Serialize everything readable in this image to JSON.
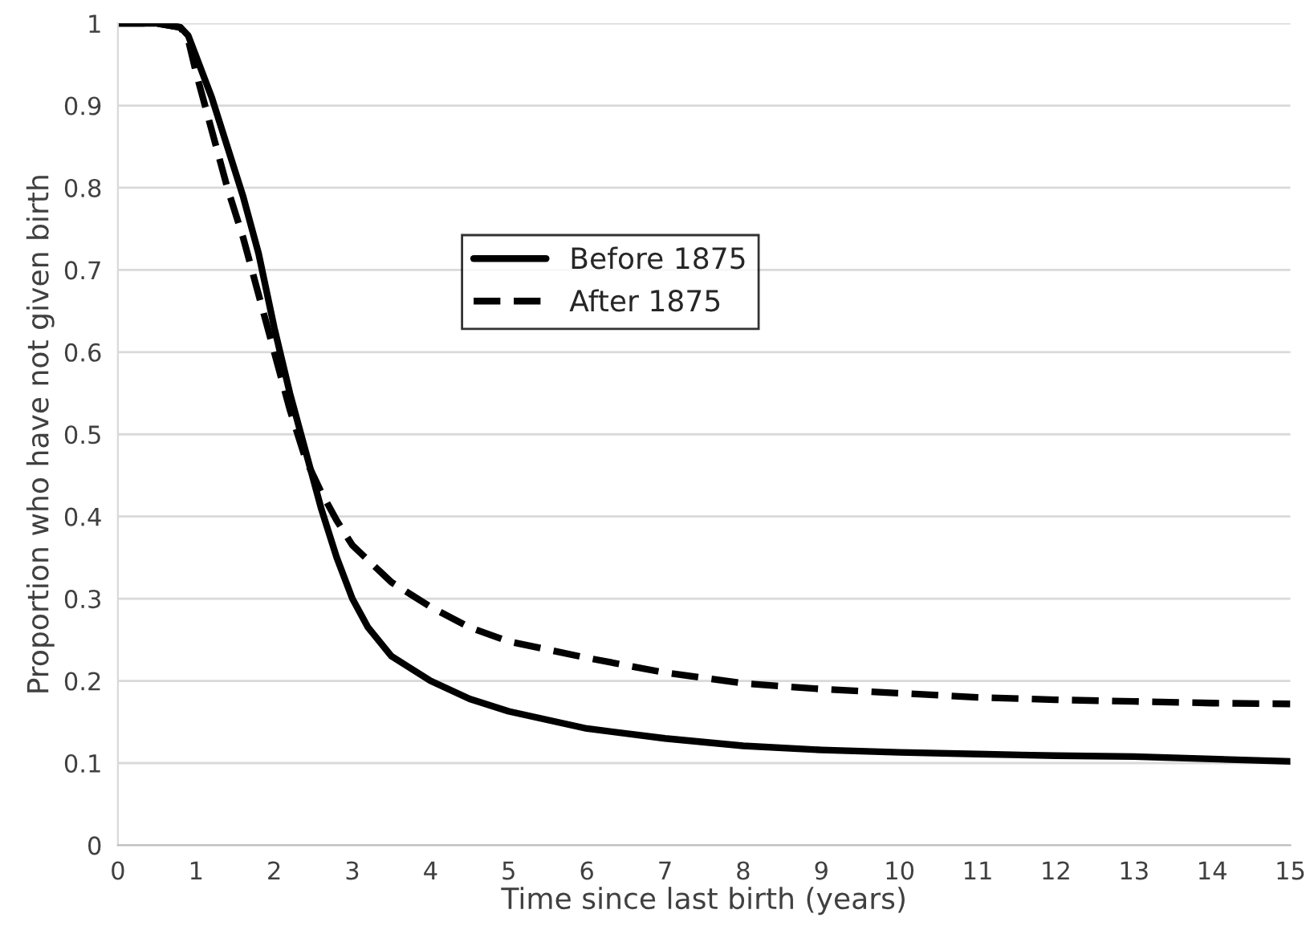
{
  "chart_data": {
    "type": "line",
    "xlabel": "Time since last birth (years)",
    "ylabel": "Proportion who have not given birth",
    "xlim": [
      0,
      15
    ],
    "xticks": [
      0,
      1,
      2,
      3,
      4,
      5,
      6,
      7,
      8,
      9,
      10,
      11,
      12,
      13,
      14,
      15
    ],
    "ylim": [
      0,
      1
    ],
    "yticks": [
      0,
      0.1,
      0.2,
      0.3,
      0.4,
      0.5,
      0.6,
      0.7,
      0.8,
      0.9,
      1
    ],
    "grid": "y",
    "legend": "top center",
    "marker": "none",
    "series": [
      {
        "name": "Before 1875",
        "color": "#000000",
        "line_style": "solid",
        "x": [
          0,
          0.5,
          0.8,
          0.9,
          1,
          1.2,
          1.4,
          1.6,
          1.8,
          2,
          2.2,
          2.4,
          2.6,
          2.8,
          3,
          3.2,
          3.5,
          4,
          4.5,
          5,
          6,
          7,
          8,
          9,
          10,
          11,
          12,
          13,
          14,
          15
        ],
        "values": [
          1,
          1,
          0.995,
          0.985,
          0.96,
          0.91,
          0.85,
          0.79,
          0.72,
          0.63,
          0.55,
          0.48,
          0.41,
          0.35,
          0.3,
          0.265,
          0.23,
          0.2,
          0.178,
          0.163,
          0.142,
          0.13,
          0.121,
          0.116,
          0.113,
          0.111,
          0.109,
          0.108,
          0.105,
          0.102
        ]
      },
      {
        "name": "After 1875",
        "color": "#000000",
        "line_style": "dashed",
        "x": [
          0,
          0.5,
          0.8,
          0.9,
          1,
          1.2,
          1.4,
          1.6,
          1.8,
          2,
          2.2,
          2.4,
          2.6,
          2.8,
          3,
          3.5,
          4,
          4.5,
          5,
          6,
          7,
          8,
          9,
          10,
          11,
          12,
          13,
          14,
          15
        ],
        "values": [
          1,
          1,
          0.995,
          0.98,
          0.94,
          0.87,
          0.8,
          0.74,
          0.67,
          0.6,
          0.53,
          0.47,
          0.43,
          0.395,
          0.365,
          0.32,
          0.29,
          0.265,
          0.248,
          0.228,
          0.21,
          0.197,
          0.19,
          0.185,
          0.18,
          0.177,
          0.175,
          0.173,
          0.172
        ]
      }
    ]
  }
}
